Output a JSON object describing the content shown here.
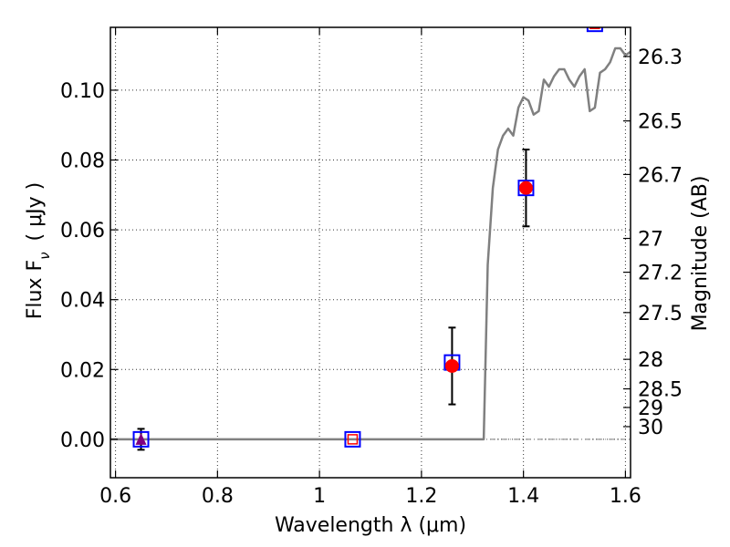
{
  "chart_data": {
    "type": "scatter",
    "xlabel": "Wavelength  λ (μm)",
    "ylabel": "Flux  F",
    "ylabel_sub": "ν",
    "ylabel_unit": "( μJy )",
    "y2label": "Magnitude (AB)",
    "xlim": [
      0.59,
      1.61
    ],
    "ylim": [
      -0.011,
      0.118
    ],
    "xticks": [
      0.6,
      0.8,
      1.0,
      1.2,
      1.4,
      1.6
    ],
    "xtick_labels": [
      "0.6",
      "0.8",
      "1",
      "1.2",
      "1.4",
      "1.6"
    ],
    "yticks": [
      0.0,
      0.02,
      0.04,
      0.06,
      0.08,
      0.1
    ],
    "ytick_labels": [
      "0.00",
      "0.02",
      "0.04",
      "0.06",
      "0.08",
      "0.10"
    ],
    "y2ticks": [
      {
        "label": "26.3",
        "mag": 26.3
      },
      {
        "label": "26.5",
        "mag": 26.5
      },
      {
        "label": "26.7",
        "mag": 26.7
      },
      {
        "label": "27",
        "mag": 27.0
      },
      {
        "label": "27.2",
        "mag": 27.2
      },
      {
        "label": "27.5",
        "mag": 27.5
      },
      {
        "label": "28",
        "mag": 28.0
      },
      {
        "label": "28.5",
        "mag": 28.5
      },
      {
        "label": "29",
        "mag": 29.0
      },
      {
        "label": "30",
        "mag": 30.0
      }
    ],
    "grid": true,
    "colors": {
      "model_line": "#808080",
      "model_square": "#0000ff",
      "observed": "#ff0000",
      "upper_limit": "#800080",
      "errorbar": "#000000",
      "zero_line": "#808080"
    },
    "model_points": [
      {
        "x": 0.65,
        "y": 0.0
      },
      {
        "x": 1.065,
        "y": 0.0
      },
      {
        "x": 1.26,
        "y": 0.022
      },
      {
        "x": 1.405,
        "y": 0.072
      },
      {
        "x": 1.54,
        "y": 0.119
      }
    ],
    "inner_squares": [
      {
        "x": 1.065,
        "y": 0.0
      },
      {
        "x": 1.54,
        "y": 0.119
      }
    ],
    "observed": [
      {
        "x": 1.26,
        "y": 0.021,
        "err": 0.011
      },
      {
        "x": 1.405,
        "y": 0.072,
        "err": 0.011
      }
    ],
    "upper_limits": [
      {
        "x": 0.65,
        "y": 0.0,
        "err": 0.003
      }
    ],
    "model_spectrum": [
      [
        0.59,
        0.0
      ],
      [
        1.322,
        0.0
      ],
      [
        1.33,
        0.05
      ],
      [
        1.34,
        0.072
      ],
      [
        1.35,
        0.083
      ],
      [
        1.36,
        0.087
      ],
      [
        1.37,
        0.089
      ],
      [
        1.38,
        0.087
      ],
      [
        1.39,
        0.095
      ],
      [
        1.4,
        0.098
      ],
      [
        1.41,
        0.097
      ],
      [
        1.42,
        0.093
      ],
      [
        1.43,
        0.094
      ],
      [
        1.44,
        0.103
      ],
      [
        1.45,
        0.101
      ],
      [
        1.46,
        0.104
      ],
      [
        1.47,
        0.106
      ],
      [
        1.48,
        0.106
      ],
      [
        1.49,
        0.103
      ],
      [
        1.5,
        0.101
      ],
      [
        1.51,
        0.104
      ],
      [
        1.52,
        0.106
      ],
      [
        1.53,
        0.094
      ],
      [
        1.54,
        0.095
      ],
      [
        1.55,
        0.105
      ],
      [
        1.56,
        0.106
      ],
      [
        1.57,
        0.108
      ],
      [
        1.58,
        0.112
      ],
      [
        1.59,
        0.112
      ],
      [
        1.6,
        0.11
      ],
      [
        1.61,
        0.111
      ]
    ]
  }
}
